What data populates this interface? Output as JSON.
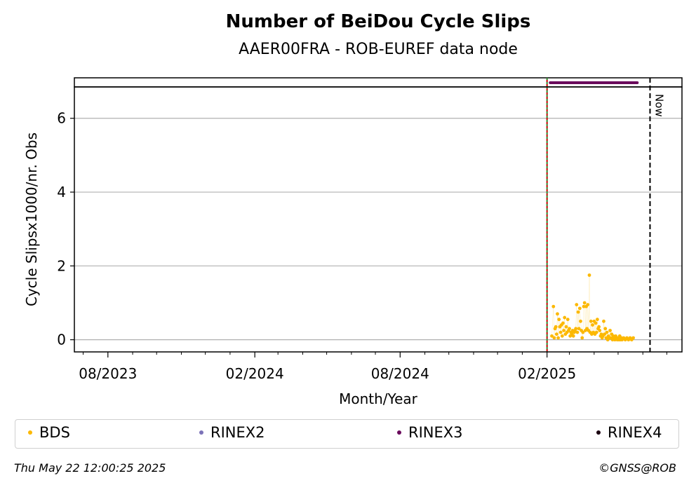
{
  "chart_data": {
    "type": "scatter",
    "title": "Number of BeiDou Cycle Slips",
    "subtitle": "AAER00FRA - ROB-EUREF data node",
    "xlabel": "Month/Year",
    "ylabel": "Cycle Slipsx1000/nr. Obs",
    "x_range": [
      "2023-06-20",
      "2025-07-20"
    ],
    "ylim": [
      -0.33,
      6.85
    ],
    "xticks": [
      {
        "date": "2023-08-01",
        "label": "08/2023"
      },
      {
        "date": "2024-02-01",
        "label": "02/2024"
      },
      {
        "date": "2024-08-01",
        "label": "08/2024"
      },
      {
        "date": "2025-02-01",
        "label": "02/2025"
      }
    ],
    "minor_xticks": [
      "2023-07-01",
      "2023-09-01",
      "2023-10-01",
      "2023-11-01",
      "2023-12-01",
      "2024-01-01",
      "2024-03-01",
      "2024-04-01",
      "2024-05-01",
      "2024-06-01",
      "2024-07-01",
      "2024-09-01",
      "2024-10-01",
      "2024-11-01",
      "2024-12-01",
      "2025-01-01",
      "2025-03-01",
      "2025-04-01",
      "2025-05-01",
      "2025-06-01",
      "2025-07-01"
    ],
    "yticks": [
      0,
      2,
      4,
      6
    ],
    "grid": "y",
    "vertical_lines": [
      {
        "date": "2025-02-01",
        "style": "dotted",
        "color": "#2e8b2e"
      },
      {
        "date": "2025-02-01",
        "style": "dotted",
        "color": "#cc0000"
      },
      {
        "date": "2025-06-10",
        "style": "dashed",
        "color": "#000000",
        "label": "Now"
      }
    ],
    "rinex_bar": {
      "series": "RINEX3",
      "color": "#6a0a5c",
      "start": "2025-02-05",
      "end": "2025-05-25"
    },
    "series": [
      {
        "name": "BDS",
        "color": "#fcb800",
        "points": [
          [
            "2025-02-07",
            0.1
          ],
          [
            "2025-02-09",
            0.9
          ],
          [
            "2025-02-10",
            0.05
          ],
          [
            "2025-02-11",
            0.3
          ],
          [
            "2025-02-12",
            0.35
          ],
          [
            "2025-02-13",
            0.15
          ],
          [
            "2025-02-14",
            0.7
          ],
          [
            "2025-02-15",
            0.05
          ],
          [
            "2025-02-16",
            0.55
          ],
          [
            "2025-02-17",
            0.35
          ],
          [
            "2025-02-18",
            0.2
          ],
          [
            "2025-02-19",
            0.4
          ],
          [
            "2025-02-20",
            0.1
          ],
          [
            "2025-02-21",
            0.45
          ],
          [
            "2025-02-22",
            0.25
          ],
          [
            "2025-02-23",
            0.6
          ],
          [
            "2025-02-24",
            0.15
          ],
          [
            "2025-02-25",
            0.35
          ],
          [
            "2025-02-26",
            0.2
          ],
          [
            "2025-02-27",
            0.55
          ],
          [
            "2025-02-28",
            0.25
          ],
          [
            "2025-03-01",
            0.3
          ],
          [
            "2025-03-02",
            0.1
          ],
          [
            "2025-03-03",
            0.2
          ],
          [
            "2025-03-04",
            0.15
          ],
          [
            "2025-03-05",
            0.25
          ],
          [
            "2025-03-06",
            0.1
          ],
          [
            "2025-03-07",
            0.2
          ],
          [
            "2025-03-08",
            0.25
          ],
          [
            "2025-03-09",
            0.3
          ],
          [
            "2025-03-10",
            0.95
          ],
          [
            "2025-03-11",
            0.2
          ],
          [
            "2025-03-12",
            0.75
          ],
          [
            "2025-03-13",
            0.3
          ],
          [
            "2025-03-14",
            0.85
          ],
          [
            "2025-03-15",
            0.5
          ],
          [
            "2025-03-16",
            0.25
          ],
          [
            "2025-03-17",
            0.05
          ],
          [
            "2025-03-18",
            0.2
          ],
          [
            "2025-03-19",
            0.9
          ],
          [
            "2025-03-20",
            1.0
          ],
          [
            "2025-03-21",
            0.25
          ],
          [
            "2025-03-22",
            0.9
          ],
          [
            "2025-03-23",
            0.3
          ],
          [
            "2025-03-24",
            0.95
          ],
          [
            "2025-03-25",
            0.25
          ],
          [
            "2025-03-26",
            1.75
          ],
          [
            "2025-03-27",
            0.2
          ],
          [
            "2025-03-28",
            0.5
          ],
          [
            "2025-03-29",
            0.15
          ],
          [
            "2025-03-30",
            0.4
          ],
          [
            "2025-03-31",
            0.2
          ],
          [
            "2025-04-01",
            0.5
          ],
          [
            "2025-04-02",
            0.15
          ],
          [
            "2025-04-03",
            0.45
          ],
          [
            "2025-04-04",
            0.2
          ],
          [
            "2025-04-05",
            0.55
          ],
          [
            "2025-04-06",
            0.3
          ],
          [
            "2025-04-07",
            0.35
          ],
          [
            "2025-04-08",
            0.25
          ],
          [
            "2025-04-09",
            0.1
          ],
          [
            "2025-04-10",
            0.15
          ],
          [
            "2025-04-11",
            0.05
          ],
          [
            "2025-04-12",
            0.1
          ],
          [
            "2025-04-13",
            0.5
          ],
          [
            "2025-04-14",
            0.15
          ],
          [
            "2025-04-15",
            0.3
          ],
          [
            "2025-04-16",
            0.05
          ],
          [
            "2025-04-17",
            0.2
          ],
          [
            "2025-04-18",
            0.0
          ],
          [
            "2025-04-19",
            0.1
          ],
          [
            "2025-04-20",
            0.05
          ],
          [
            "2025-04-21",
            0.25
          ],
          [
            "2025-04-22",
            0.05
          ],
          [
            "2025-04-23",
            0.15
          ],
          [
            "2025-04-24",
            0.0
          ],
          [
            "2025-04-25",
            0.1
          ],
          [
            "2025-04-26",
            0.05
          ],
          [
            "2025-04-27",
            0.0
          ],
          [
            "2025-04-28",
            0.1
          ],
          [
            "2025-04-29",
            0.05
          ],
          [
            "2025-04-30",
            0.0
          ],
          [
            "2025-05-01",
            0.05
          ],
          [
            "2025-05-02",
            0.0
          ],
          [
            "2025-05-03",
            0.1
          ],
          [
            "2025-05-04",
            0.0
          ],
          [
            "2025-05-05",
            0.05
          ],
          [
            "2025-05-06",
            0.0
          ],
          [
            "2025-05-08",
            0.05
          ],
          [
            "2025-05-10",
            0.0
          ],
          [
            "2025-05-12",
            0.05
          ],
          [
            "2025-05-14",
            0.0
          ],
          [
            "2025-05-16",
            0.05
          ],
          [
            "2025-05-18",
            0.0
          ],
          [
            "2025-05-20",
            0.05
          ]
        ]
      },
      {
        "name": "RINEX2",
        "color": "#7b72b8",
        "points": []
      },
      {
        "name": "RINEX3",
        "color": "#6a0a5c",
        "points": []
      },
      {
        "name": "RINEX4",
        "color": "#1a0010",
        "points": []
      }
    ],
    "legend": [
      {
        "label": "BDS",
        "color": "#fcb800"
      },
      {
        "label": "RINEX2",
        "color": "#7b72b8"
      },
      {
        "label": "RINEX3",
        "color": "#6a0a5c"
      },
      {
        "label": "RINEX4",
        "color": "#1a0010"
      }
    ]
  },
  "footer": {
    "timestamp": "Thu May 22 12:00:25 2025",
    "credit": "©GNSS@ROB"
  }
}
